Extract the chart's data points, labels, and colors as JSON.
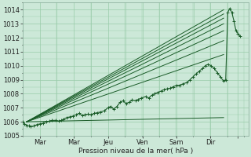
{
  "background_color": "#cce8d8",
  "grid_color": "#99ccaa",
  "line_color": "#1a5c28",
  "xlabel": "Pression niveau de la mer( hPa )",
  "ylim": [
    1005.0,
    1014.5
  ],
  "yticks": [
    1005,
    1006,
    1007,
    1008,
    1009,
    1010,
    1011,
    1012,
    1013,
    1014
  ],
  "xlim": [
    0.0,
    5.5
  ],
  "day_lines": [
    0.83,
    1.67,
    2.5,
    3.33,
    4.17,
    5.0
  ],
  "xtick_pos": [
    0.42,
    1.25,
    2.08,
    2.92,
    3.75,
    4.58,
    5.25
  ],
  "xticklabels": [
    "Mar",
    "Mar",
    "Jeu",
    "Ven",
    "Sam",
    "Dir",
    ""
  ],
  "figsize": [
    3.2,
    2.0
  ],
  "dpi": 100,
  "forecast_lines": [
    {
      "x0": 0.1,
      "y0": 1006.0,
      "x1": 4.9,
      "y1": 1014.0
    },
    {
      "x0": 0.1,
      "y0": 1006.0,
      "x1": 4.9,
      "y1": 1013.7
    },
    {
      "x0": 0.1,
      "y0": 1006.0,
      "x1": 4.9,
      "y1": 1013.4
    },
    {
      "x0": 0.1,
      "y0": 1006.0,
      "x1": 4.9,
      "y1": 1013.0
    },
    {
      "x0": 0.1,
      "y0": 1006.0,
      "x1": 4.9,
      "y1": 1012.5
    },
    {
      "x0": 0.1,
      "y0": 1006.0,
      "x1": 4.9,
      "y1": 1011.8
    },
    {
      "x0": 0.1,
      "y0": 1006.0,
      "x1": 4.9,
      "y1": 1010.8
    },
    {
      "x0": 0.1,
      "y0": 1006.0,
      "x1": 4.9,
      "y1": 1006.3
    }
  ],
  "detail_x": [
    0.0,
    0.05,
    0.1,
    0.15,
    0.2,
    0.28,
    0.35,
    0.42,
    0.5,
    0.58,
    0.65,
    0.72,
    0.8,
    0.88,
    0.95,
    1.0,
    1.08,
    1.15,
    1.22,
    1.3,
    1.38,
    1.45,
    1.52,
    1.6,
    1.67,
    1.75,
    1.82,
    1.9,
    2.0,
    2.08,
    2.15,
    2.22,
    2.3,
    2.38,
    2.45,
    2.52,
    2.6,
    2.67,
    2.75,
    2.82,
    2.9,
    3.0,
    3.08,
    3.15,
    3.22,
    3.3,
    3.38,
    3.45,
    3.52,
    3.6,
    3.67,
    3.75,
    3.82,
    3.9,
    4.0,
    4.08,
    4.15,
    4.22,
    4.3,
    4.38,
    4.45,
    4.52,
    4.6,
    4.67,
    4.75,
    4.82,
    4.9,
    4.95,
    5.0,
    5.05,
    5.1,
    5.15,
    5.2,
    5.25,
    5.3
  ],
  "detail_y": [
    1006.0,
    1005.85,
    1005.75,
    1005.7,
    1005.65,
    1005.7,
    1005.8,
    1005.85,
    1005.9,
    1006.0,
    1006.05,
    1006.1,
    1006.1,
    1006.05,
    1006.1,
    1006.2,
    1006.3,
    1006.35,
    1006.4,
    1006.5,
    1006.6,
    1006.45,
    1006.5,
    1006.55,
    1006.5,
    1006.6,
    1006.65,
    1006.7,
    1006.8,
    1007.0,
    1007.1,
    1006.9,
    1007.1,
    1007.4,
    1007.5,
    1007.3,
    1007.4,
    1007.55,
    1007.5,
    1007.6,
    1007.7,
    1007.8,
    1007.7,
    1007.9,
    1008.0,
    1008.1,
    1008.2,
    1008.3,
    1008.35,
    1008.4,
    1008.5,
    1008.6,
    1008.6,
    1008.7,
    1008.8,
    1009.0,
    1009.2,
    1009.4,
    1009.6,
    1009.8,
    1010.0,
    1010.1,
    1010.0,
    1009.8,
    1009.5,
    1009.2,
    1008.9,
    1009.0,
    1013.8,
    1014.1,
    1013.8,
    1013.2,
    1012.5,
    1012.3,
    1012.1
  ]
}
